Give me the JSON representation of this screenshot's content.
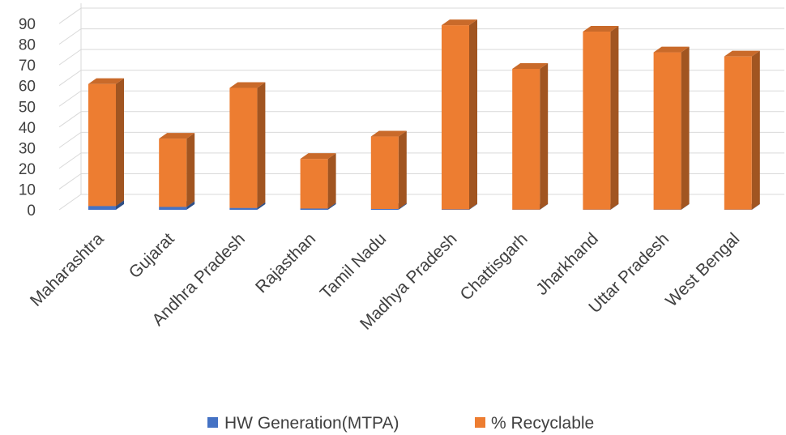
{
  "chart_data": {
    "type": "bar",
    "categories": [
      "Maharashtra",
      "Gujarat",
      "Andhra Pradesh",
      "Rajasthan",
      "Tamil Nadu",
      "Madhya Pradesh",
      "Chattisgarh",
      "Jharkhand",
      "Uttar Pradesh",
      "West Bengal"
    ],
    "series": [
      {
        "name": "HW Generation(MTPA)",
        "color": "#4472C4",
        "values": [
          1.8,
          1.4,
          0.9,
          0.6,
          0.4,
          0.2,
          0.1,
          0.1,
          0.1,
          0.1
        ]
      },
      {
        "name": "% Recyclable",
        "color": "#ED7D31",
        "values": [
          59,
          33,
          58,
          24,
          35,
          89,
          68,
          86,
          76,
          74
        ]
      }
    ],
    "stacked": true,
    "ylim": [
      0,
      90
    ],
    "yticks": [
      0,
      10,
      20,
      30,
      40,
      50,
      60,
      70,
      80,
      90
    ],
    "grid": true,
    "legend": "bottom",
    "style": "3d-column"
  }
}
